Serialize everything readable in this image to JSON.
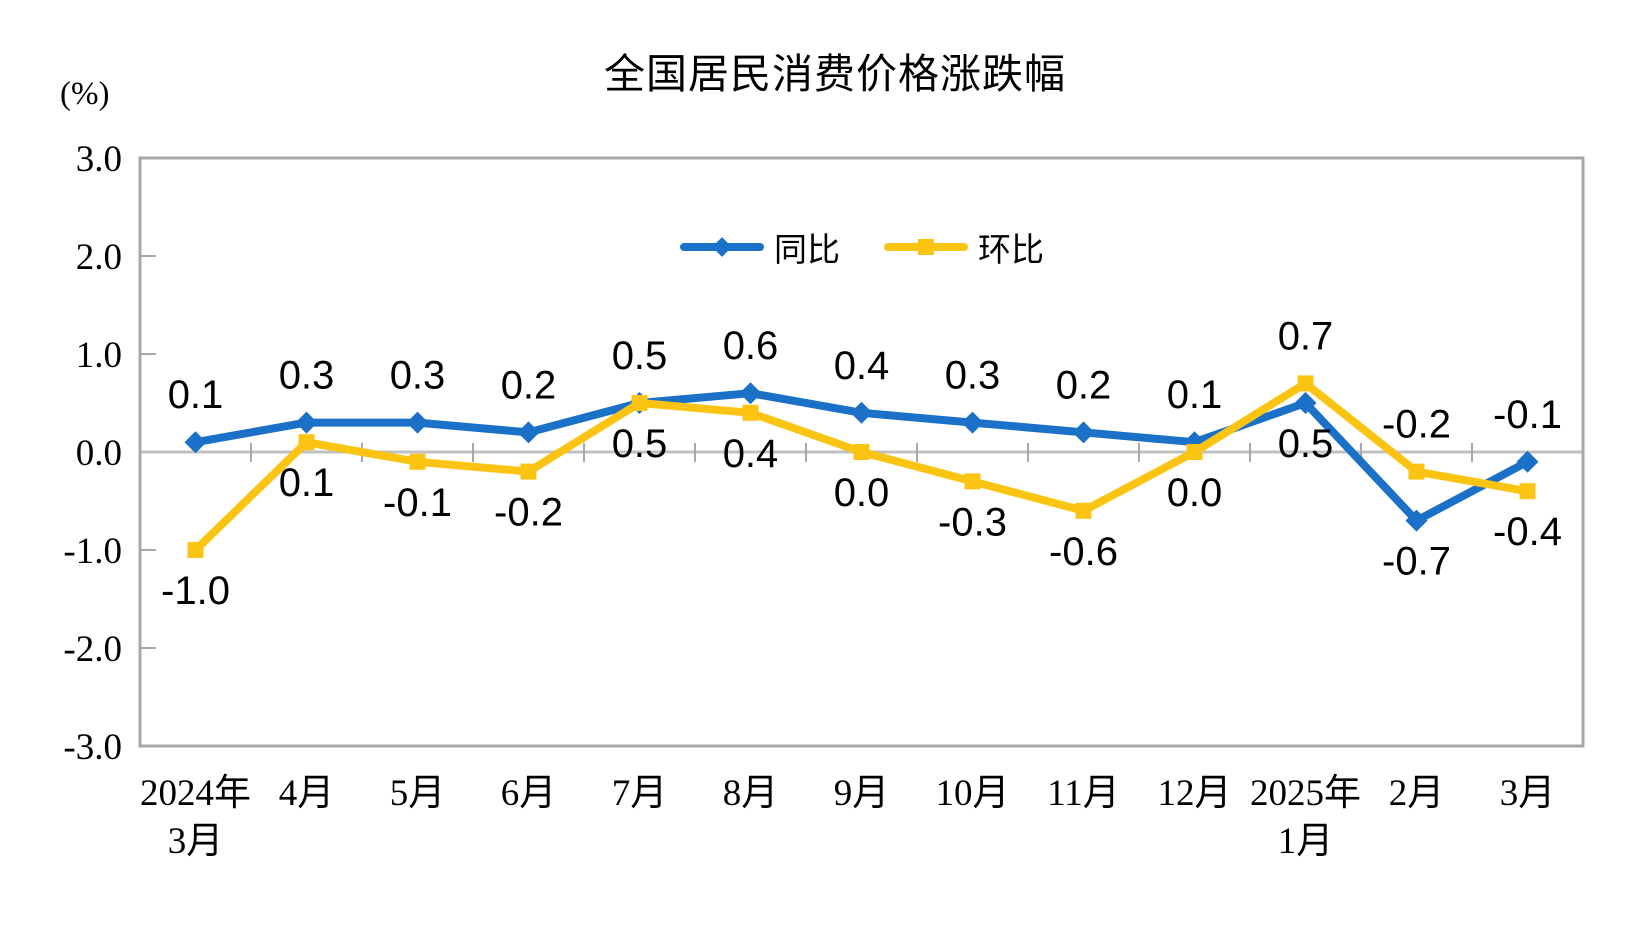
{
  "chart_data": {
    "type": "line",
    "title": "全国居民消费价格涨跌幅",
    "unit": "(%)",
    "categories": [
      "2024年\n3月",
      "4月",
      "5月",
      "6月",
      "7月",
      "8月",
      "9月",
      "10月",
      "11月",
      "12月",
      "2025年\n1月",
      "2月",
      "3月"
    ],
    "series": [
      {
        "name": "同比",
        "marker": "diamond",
        "color": "#1B70C8",
        "values": [
          0.1,
          0.3,
          0.3,
          0.2,
          0.5,
          0.6,
          0.4,
          0.3,
          0.2,
          0.1,
          0.5,
          -0.7,
          -0.1
        ]
      },
      {
        "name": "环比",
        "marker": "square",
        "color": "#FCC412",
        "values": [
          -1.0,
          0.1,
          -0.1,
          -0.2,
          0.5,
          0.4,
          0.0,
          -0.3,
          -0.6,
          0.0,
          0.7,
          -0.2,
          -0.4
        ]
      }
    ],
    "ylim": [
      -3.0,
      3.0
    ],
    "yticks": [
      3.0,
      2.0,
      1.0,
      0.0,
      -1.0,
      -2.0,
      -3.0
    ],
    "grid": "zero-line-only",
    "legend_position": "top-center-inside",
    "colors": {
      "border": "#A8A8A8",
      "zero_line": "#C0C0C0",
      "tick": "#A8A8A8",
      "label_text": "#000000"
    }
  }
}
